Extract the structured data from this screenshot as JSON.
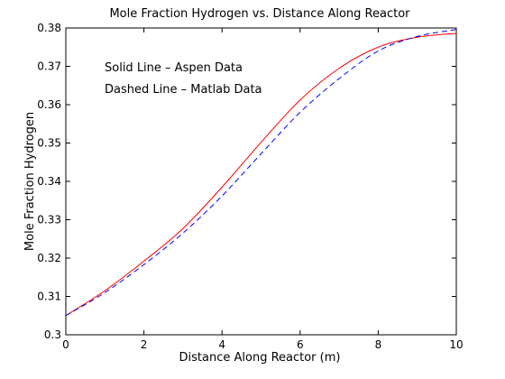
{
  "chart_data": {
    "type": "line",
    "title": "Mole Fraction Hydrogen vs. Distance Along Reactor",
    "xlabel": "Distance Along Reactor (m)",
    "ylabel": "Mole Fraction Hydrogen",
    "xlim": [
      0,
      10
    ],
    "ylim": [
      0.3,
      0.38
    ],
    "xticks": [
      "0",
      "2",
      "4",
      "6",
      "8",
      "10"
    ],
    "yticks": [
      "0.3",
      "0.31",
      "0.32",
      "0.33",
      "0.34",
      "0.35",
      "0.36",
      "0.37",
      "0.38"
    ],
    "grid": false,
    "annotations": [
      "Solid Line – Aspen Data",
      "Dashed Line – Matlab Data"
    ],
    "series": [
      {
        "style": "solid",
        "color": "#ff0000",
        "x": [
          0,
          1,
          2,
          3,
          4,
          5,
          6,
          7,
          8,
          9,
          10
        ],
        "y": [
          0.305,
          0.3115,
          0.3192,
          0.3277,
          0.3385,
          0.3502,
          0.3612,
          0.3695,
          0.375,
          0.3776,
          0.3786
        ]
      },
      {
        "style": "dashed",
        "color": "#0000ff",
        "x": [
          0,
          1,
          2,
          3,
          4,
          5,
          6,
          7,
          8,
          9,
          10
        ],
        "y": [
          0.305,
          0.311,
          0.3183,
          0.3265,
          0.3362,
          0.3472,
          0.358,
          0.3668,
          0.374,
          0.3778,
          0.3796
        ]
      }
    ]
  }
}
